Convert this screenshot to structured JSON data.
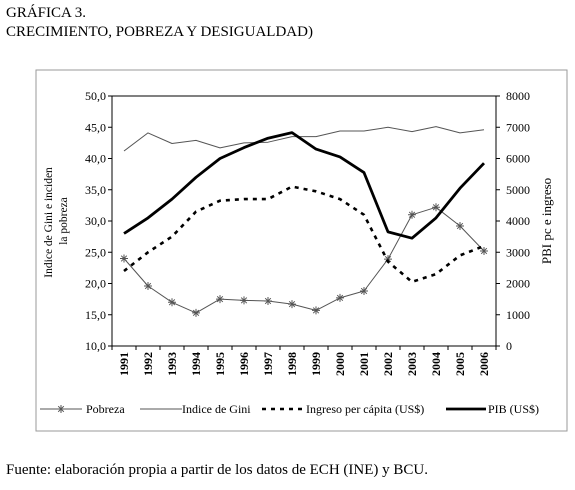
{
  "figure": {
    "label": "GRÁFICA 3.",
    "subtitle": "CRECIMIENTO, POBREZA Y DESIGUALDAD)",
    "source": "Fuente: elaboración propia a partir de los datos de ECH (INE) y BCU."
  },
  "chart_data": {
    "type": "line",
    "categories": [
      "1991",
      "1992",
      "1993",
      "1994",
      "1995",
      "1996",
      "1997",
      "1998",
      "1999",
      "2000",
      "2001",
      "2002",
      "2003",
      "2004",
      "2005",
      "2006"
    ],
    "ylabel_left": [
      "Indice de Gini e inciden",
      "la pobreza"
    ],
    "ylabel_right": "PBI pc e ingreso",
    "ylim_left": [
      10,
      50
    ],
    "ylim_right": [
      0,
      8000
    ],
    "yticks_left": [
      "10,0",
      "15,0",
      "20,0",
      "25,0",
      "30,0",
      "35,0",
      "40,0",
      "45,0",
      "50,0"
    ],
    "yticks_right": [
      "0",
      "1000",
      "2000",
      "3000",
      "4000",
      "5000",
      "6000",
      "7000",
      "8000"
    ],
    "grid": false,
    "legend_position": "bottom",
    "series": [
      {
        "name": "Pobreza",
        "axis": "left",
        "style": "star-markers",
        "color": "#555555",
        "values": [
          24.0,
          19.6,
          17.0,
          15.3,
          17.5,
          17.3,
          17.2,
          16.7,
          15.7,
          17.7,
          18.8,
          23.9,
          31.0,
          32.2,
          29.2,
          25.2
        ]
      },
      {
        "name": "Indice de Gini",
        "axis": "left",
        "style": "thin",
        "color": "#555555",
        "values": [
          41.2,
          44.1,
          42.4,
          42.9,
          41.7,
          42.5,
          42.6,
          43.5,
          43.5,
          44.4,
          44.4,
          45.0,
          44.3,
          45.1,
          44.1,
          44.6
        ]
      },
      {
        "name": "Ingreso per cápita (US$)",
        "axis": "right",
        "style": "dashed",
        "color": "#000000",
        "values": [
          2400,
          3000,
          3500,
          4300,
          4650,
          4700,
          4700,
          5100,
          4950,
          4700,
          4200,
          2700,
          2050,
          2300,
          2900,
          3200
        ]
      },
      {
        "name": "PIB (US$)",
        "axis": "right",
        "style": "thick",
        "color": "#000000",
        "values": [
          3600,
          4100,
          4700,
          5400,
          6000,
          6350,
          6650,
          6830,
          6300,
          6050,
          5550,
          3650,
          3450,
          4100,
          5050,
          5850
        ]
      }
    ]
  }
}
